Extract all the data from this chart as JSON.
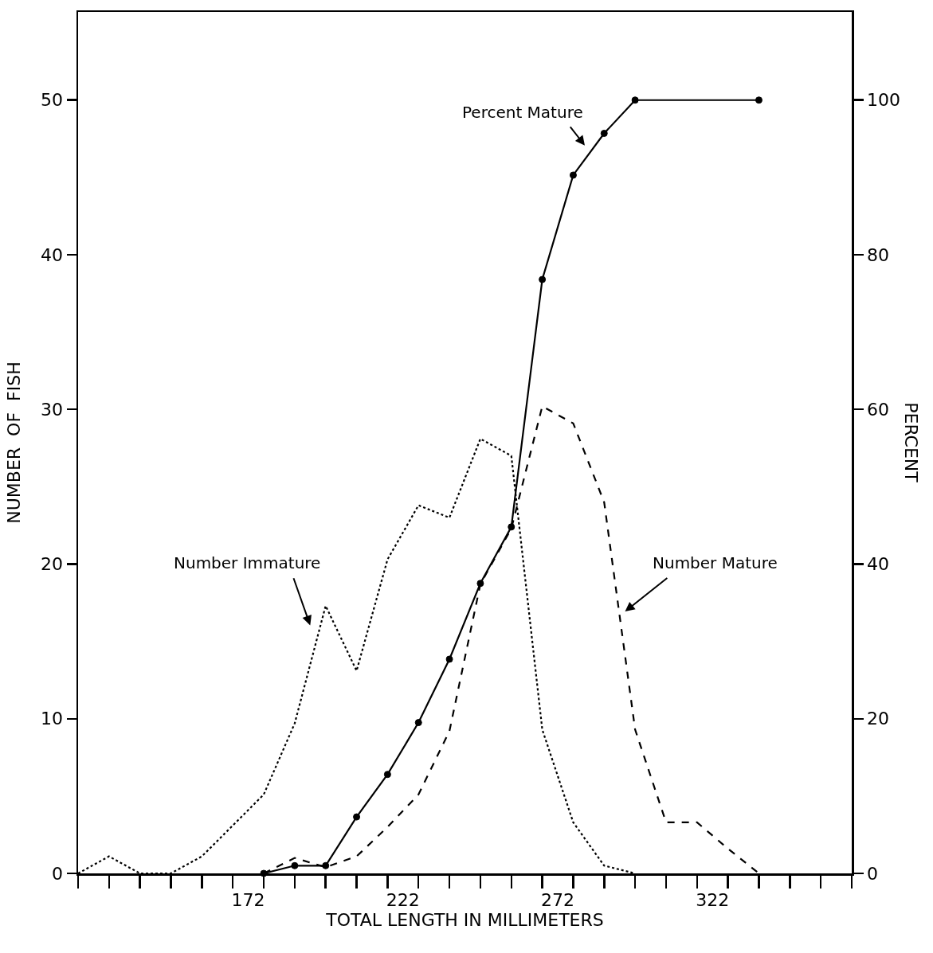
{
  "chart_data": {
    "type": "line",
    "xlabel": "TOTAL LENGTH IN MILLIMETERS",
    "ylabel": "NUMBER  OF  FISH",
    "y2label": "PERCENT",
    "xlim": [
      117,
      367
    ],
    "xticks": [
      {
        "value": 117,
        "label": null
      },
      {
        "value": 127,
        "label": null
      },
      {
        "value": 137,
        "label": null
      },
      {
        "value": 147,
        "label": null
      },
      {
        "value": 157,
        "label": null
      },
      {
        "value": 167,
        "label": null
      },
      {
        "value": 177,
        "label": null
      },
      {
        "value": 187,
        "label": null
      },
      {
        "value": 197,
        "label": null
      },
      {
        "value": 207,
        "label": null
      },
      {
        "value": 217,
        "label": null
      },
      {
        "value": 227,
        "label": null
      },
      {
        "value": 237,
        "label": null
      },
      {
        "value": 247,
        "label": null
      },
      {
        "value": 257,
        "label": null
      },
      {
        "value": 267,
        "label": null
      },
      {
        "value": 277,
        "label": null
      },
      {
        "value": 287,
        "label": null
      },
      {
        "value": 297,
        "label": null
      },
      {
        "value": 307,
        "label": null
      },
      {
        "value": 317,
        "label": null
      },
      {
        "value": 327,
        "label": null
      },
      {
        "value": 337,
        "label": null
      },
      {
        "value": 347,
        "label": null
      },
      {
        "value": 357,
        "label": null
      },
      {
        "value": 367,
        "label": null
      },
      172,
      222,
      272,
      322
    ],
    "ylim": [
      0,
      55.7
    ],
    "yticks": [
      0,
      10,
      20,
      30,
      40,
      50
    ],
    "y2lim": [
      0,
      111.4
    ],
    "y2ticks": [
      0,
      20,
      40,
      60,
      80,
      100
    ],
    "grid": false,
    "legend": false,
    "series": [
      {
        "name": "Number Immature",
        "color": "#000000",
        "line_style": "dotted",
        "marker": "none",
        "x": [
          117,
          127,
          137,
          147,
          157,
          167,
          177,
          187,
          197,
          207,
          217,
          227,
          237,
          247,
          257,
          267,
          277,
          287,
          297
        ],
        "values": [
          0,
          1.1,
          0,
          0,
          1.1,
          3.1,
          5.1,
          9.7,
          17.3,
          13.1,
          20.3,
          23.8,
          23,
          28.1,
          27,
          9.3,
          3.3,
          0.5,
          0
        ]
      },
      {
        "name": "Number Mature",
        "color": "#000000",
        "line_style": "dashed",
        "marker": "none",
        "x": [
          177,
          187,
          197,
          207,
          217,
          227,
          237,
          247,
          257,
          267,
          277,
          287,
          297,
          307,
          317,
          327,
          337
        ],
        "values": [
          0,
          1,
          0.4,
          1.1,
          3,
          5.1,
          9.2,
          18.7,
          22.3,
          30.2,
          29.1,
          24,
          9.3,
          3.3,
          3.3,
          1.6,
          0
        ]
      },
      {
        "name": "Percent Mature",
        "color": "#000000",
        "line_style": "solid",
        "marker": "circle",
        "axis": "y2",
        "x": [
          177,
          187,
          197,
          207,
          217,
          227,
          237,
          247,
          257,
          267,
          277,
          287,
          297,
          337
        ],
        "values": [
          0,
          1,
          1,
          7.3,
          12.8,
          19.5,
          27.7,
          37.5,
          44.8,
          76.8,
          90.3,
          95.7,
          100,
          100
        ]
      }
    ]
  }
}
